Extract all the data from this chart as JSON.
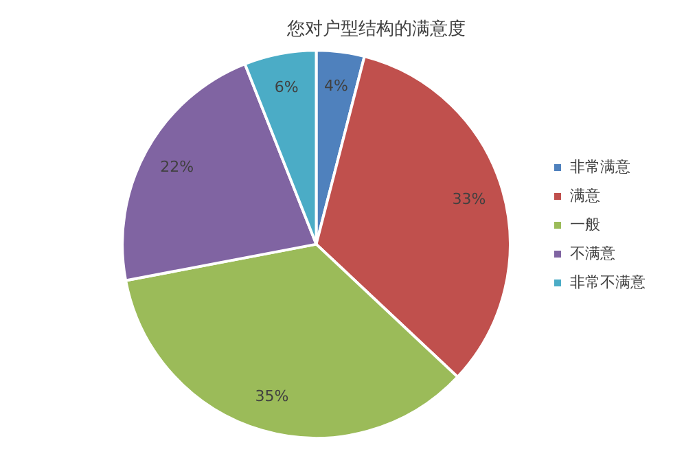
{
  "chart_data": {
    "type": "pie",
    "title": "您对户型结构的满意度",
    "categories": [
      "非常满意",
      "满意",
      "一般",
      "不满意",
      "非常不满意"
    ],
    "values": [
      4,
      33,
      35,
      22,
      6
    ],
    "colors": [
      "#4f81bd",
      "#c0504d",
      "#9bbb59",
      "#8064a2",
      "#4bacc6"
    ],
    "value_labels": [
      "4%",
      "33%",
      "35%",
      "22%",
      "6%"
    ],
    "legend": "right"
  }
}
